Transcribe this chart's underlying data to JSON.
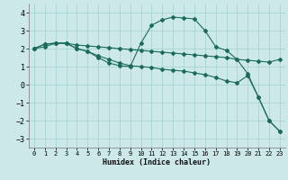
{
  "xlabel": "Humidex (Indice chaleur)",
  "bg_color": "#cce8e8",
  "grid_color": "#a8d4d4",
  "line_color": "#1a6b5a",
  "xlim": [
    -0.5,
    23.5
  ],
  "ylim": [
    -3.5,
    4.5
  ],
  "yticks": [
    -3,
    -2,
    -1,
    0,
    1,
    2,
    3,
    4
  ],
  "xticks": [
    0,
    1,
    2,
    3,
    4,
    5,
    6,
    7,
    8,
    9,
    10,
    11,
    12,
    13,
    14,
    15,
    16,
    17,
    18,
    19,
    20,
    21,
    22,
    23
  ],
  "curve1_x": [
    0,
    1,
    2,
    3,
    4,
    5,
    6,
    7,
    8,
    9,
    10,
    11,
    12,
    13,
    14,
    15,
    16,
    17,
    18,
    19,
    20,
    21,
    22,
    23
  ],
  "curve1_y": [
    2.0,
    2.25,
    2.3,
    2.3,
    2.2,
    2.15,
    2.1,
    2.05,
    2.0,
    1.95,
    1.9,
    1.85,
    1.8,
    1.75,
    1.7,
    1.65,
    1.6,
    1.55,
    1.5,
    1.4,
    1.35,
    1.3,
    1.25,
    1.4
  ],
  "curve2_x": [
    0,
    1,
    2,
    3,
    4,
    5,
    6,
    7,
    8,
    9,
    10,
    11,
    12,
    13,
    14,
    15,
    16,
    17,
    18,
    19,
    20,
    21,
    22,
    23
  ],
  "curve2_y": [
    2.0,
    2.25,
    2.3,
    2.3,
    2.0,
    1.85,
    1.6,
    1.4,
    1.2,
    1.05,
    1.0,
    0.95,
    0.85,
    0.8,
    0.75,
    0.65,
    0.55,
    0.4,
    0.2,
    0.1,
    0.5,
    -0.7,
    -2.0,
    -2.6
  ],
  "curve3_x": [
    0,
    1,
    2,
    3,
    4,
    5,
    6,
    7,
    8,
    9,
    10,
    11,
    12,
    13,
    14,
    15,
    16,
    17,
    18,
    19,
    20,
    21,
    22,
    23
  ],
  "curve3_y": [
    2.0,
    2.1,
    2.3,
    2.3,
    2.0,
    1.85,
    1.5,
    1.2,
    1.05,
    1.0,
    2.3,
    3.3,
    3.6,
    3.75,
    3.7,
    3.65,
    3.0,
    2.1,
    1.9,
    1.4,
    0.6,
    -0.7,
    -2.0,
    -2.6
  ]
}
